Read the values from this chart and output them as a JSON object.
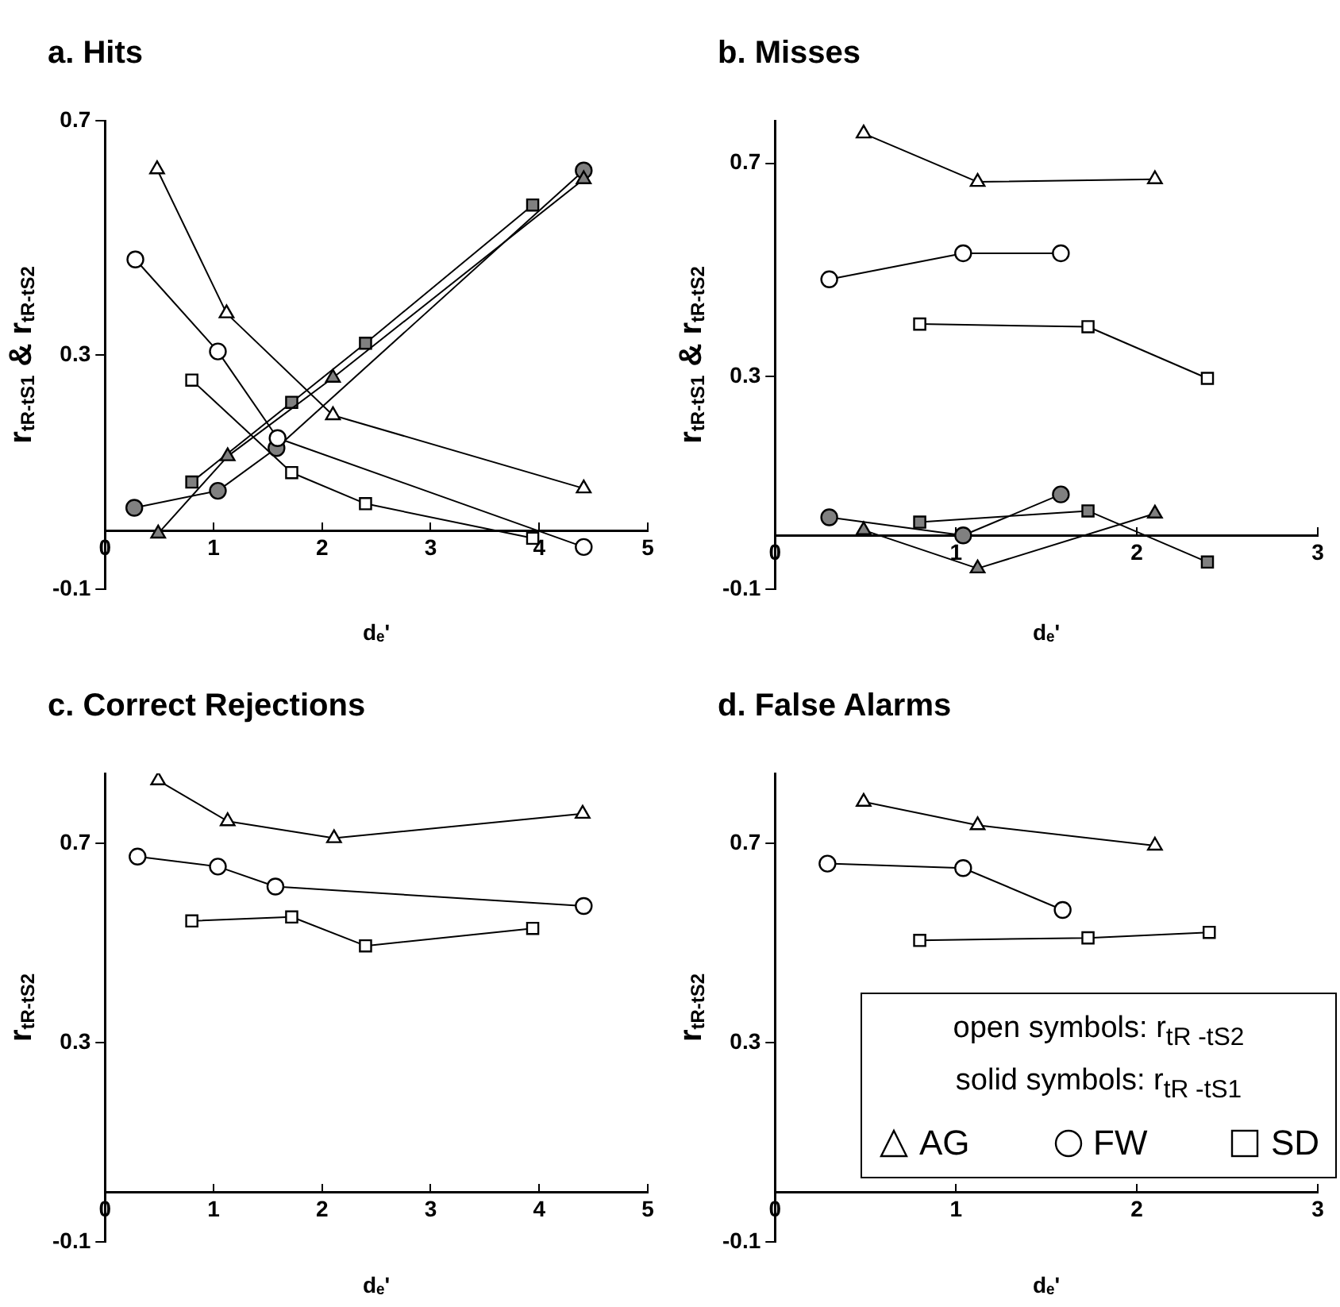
{
  "chart_data": [
    {
      "type": "line",
      "title": "a. Hits",
      "xlabel": "dₑ'",
      "ylabel": "r$_{tR-tS1}$ & r$_{tR-tS2}$",
      "xlim": [
        0,
        5
      ],
      "xticks": [
        0,
        1,
        2,
        3,
        4,
        5
      ],
      "ylim": [
        -0.1,
        0.7
      ],
      "yticks": [
        -0.1,
        0.3,
        0.7
      ],
      "series": [
        {
          "marker": "triangle",
          "color": "#ffffff",
          "x": [
            0.48,
            1.12,
            2.1,
            4.41
          ],
          "values": [
            0.617,
            0.371,
            0.197,
            0.072
          ]
        },
        {
          "marker": "circle",
          "color": "#ffffff",
          "x": [
            0.28,
            1.04,
            1.59,
            4.41
          ],
          "values": [
            0.463,
            0.306,
            0.158,
            -0.028
          ]
        },
        {
          "marker": "square",
          "color": "#ffffff",
          "x": [
            0.8,
            1.72,
            2.4,
            3.94
          ],
          "values": [
            0.257,
            0.099,
            0.046,
            -0.013
          ]
        },
        {
          "marker": "triangle",
          "color": "#808080",
          "x": [
            0.49,
            1.13,
            2.1,
            4.41
          ],
          "values": [
            -0.005,
            0.127,
            0.261,
            0.6
          ]
        },
        {
          "marker": "square",
          "color": "#808080",
          "x": [
            0.8,
            1.72,
            2.4,
            3.94
          ],
          "values": [
            0.083,
            0.219,
            0.32,
            0.556
          ]
        },
        {
          "marker": "circle",
          "color": "#808080",
          "x": [
            0.27,
            1.04,
            1.58,
            4.41
          ],
          "values": [
            0.039,
            0.068,
            0.141,
            0.615
          ]
        }
      ]
    },
    {
      "type": "line",
      "title": "b. Misses",
      "xlabel": "dₑ'",
      "ylabel": "r$_{tR-tS1}$ & r$_{tR-tS2}$",
      "xlim": [
        0,
        3
      ],
      "xticks": [
        0,
        1,
        2,
        3
      ],
      "ylim": [
        -0.1,
        0.78
      ],
      "yticks": [
        -0.1,
        0.3,
        0.7
      ],
      "series": [
        {
          "marker": "triangle",
          "color": "#ffffff",
          "x": [
            0.49,
            1.12,
            2.1
          ],
          "values": [
            0.756,
            0.665,
            0.67
          ]
        },
        {
          "marker": "circle",
          "color": "#ffffff",
          "x": [
            0.3,
            1.04,
            1.58
          ],
          "values": [
            0.482,
            0.531,
            0.531
          ]
        },
        {
          "marker": "square",
          "color": "#ffffff",
          "x": [
            0.8,
            1.73,
            2.39
          ],
          "values": [
            0.398,
            0.393,
            0.296
          ]
        },
        {
          "marker": "triangle",
          "color": "#808080",
          "x": [
            0.49,
            1.12,
            2.1
          ],
          "values": [
            0.011,
            -0.061,
            0.042
          ]
        },
        {
          "marker": "square",
          "color": "#808080",
          "x": [
            0.8,
            1.73,
            2.39
          ],
          "values": [
            0.026,
            0.047,
            -0.049
          ]
        },
        {
          "marker": "circle",
          "color": "#808080",
          "x": [
            0.3,
            1.04,
            1.58
          ],
          "values": [
            0.035,
            0.001,
            0.078
          ]
        }
      ]
    },
    {
      "type": "line",
      "title": "c. Correct Rejections",
      "xlabel": "dₑ'",
      "ylabel": "r$_{tR-tS2}$",
      "xlim": [
        0,
        5
      ],
      "xticks": [
        0,
        1,
        2,
        3,
        4,
        5
      ],
      "ylim": [
        -0.1,
        0.84
      ],
      "yticks": [
        -0.1,
        0.3,
        0.7
      ],
      "series": [
        {
          "marker": "triangle",
          "color": "#ffffff",
          "x": [
            0.49,
            1.13,
            2.11,
            4.4
          ],
          "values": [
            0.826,
            0.744,
            0.71,
            0.759
          ]
        },
        {
          "marker": "circle",
          "color": "#ffffff",
          "x": [
            0.3,
            1.04,
            1.57,
            4.41
          ],
          "values": [
            0.673,
            0.653,
            0.613,
            0.574
          ]
        },
        {
          "marker": "square",
          "color": "#ffffff",
          "x": [
            0.8,
            1.72,
            2.4,
            3.94
          ],
          "values": [
            0.544,
            0.552,
            0.494,
            0.529
          ]
        }
      ]
    },
    {
      "type": "line",
      "title": "d. False Alarms",
      "xlabel": "dₑ'",
      "ylabel": "r$_{tR-tS2}$",
      "xlim": [
        0,
        3
      ],
      "xticks": [
        0,
        1,
        2,
        3
      ],
      "ylim": [
        -0.1,
        0.84
      ],
      "yticks": [
        -0.1,
        0.3,
        0.7
      ],
      "legend": "bottom right",
      "legend_title": "open symbols: r$_{tR -tS2}$\nsolid symbols: r$_{tR -tS1}$",
      "series": [
        {
          "name": "AG",
          "marker": "triangle",
          "color": "#ffffff",
          "x": [
            0.49,
            1.12,
            2.1
          ],
          "values": [
            0.783,
            0.736,
            0.695
          ]
        },
        {
          "name": "FW",
          "marker": "circle",
          "color": "#ffffff",
          "x": [
            0.29,
            1.04,
            1.59
          ],
          "values": [
            0.659,
            0.65,
            0.566
          ]
        },
        {
          "name": "SD",
          "marker": "square",
          "color": "#ffffff",
          "x": [
            0.8,
            1.73,
            2.4
          ],
          "values": [
            0.505,
            0.51,
            0.521
          ]
        }
      ]
    }
  ]
}
